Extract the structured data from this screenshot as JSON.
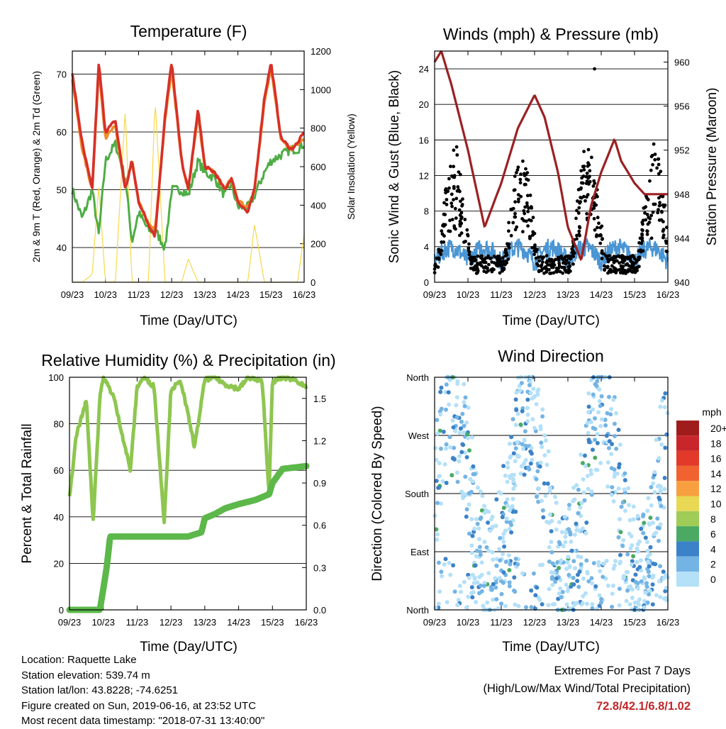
{
  "colors": {
    "temp_2m": "#d63128",
    "temp_9m": "#f08c2a",
    "dewpoint": "#4ead45",
    "solar": "#f7d84b",
    "gust": "#000000",
    "wind": "#4a95d3",
    "pressure": "#9a2124",
    "rh": "#8ec650",
    "precip": "#5cb84a"
  },
  "time_ticks": [
    "09/23",
    "10/23",
    "11/23",
    "12/23",
    "13/23",
    "14/23",
    "15/23",
    "16/23"
  ],
  "info": [
    "Location: Raquette Lake",
    "Station elevation: 539.74 m",
    "Station lat/lon: 43.8228; -74.6251",
    "Figure created on Sun, 2019-06-16, at 23:52 UTC",
    "Most recent data timestamp: \"2018-07-31 13:40:00\""
  ],
  "extremes": {
    "title": "Extremes For Past 7 Days",
    "subtitle": "(High/Low/Max Wind/Total Precipitation)",
    "values": "72.8/42.1/6.8/1.02"
  },
  "chart_data": [
    {
      "type": "line",
      "title": "Temperature (F)",
      "xlabel": "Time (Day/UTC)",
      "ylabel": "2m & 9m T (Red, Orange) & 2m Td (Green)",
      "y2label": "Solar Insolation (Yellow)",
      "ylim": [
        34,
        74
      ],
      "yticks": [
        40,
        50,
        60,
        70
      ],
      "y2lim": [
        0,
        1200
      ],
      "y2ticks": [
        0,
        200,
        400,
        600,
        800,
        1000,
        1200
      ],
      "grid": true,
      "x": [
        9,
        9.3,
        9.6,
        9.8,
        10,
        10.3,
        10.6,
        10.8,
        11,
        11.3,
        11.5,
        11.8,
        12,
        12.3,
        12.5,
        12.8,
        13,
        13.3,
        13.6,
        13.8,
        14,
        14.3,
        14.5,
        14.8,
        15,
        15.3,
        15.6,
        15.8,
        16
      ],
      "series": [
        {
          "name": "2m T",
          "axis": "y",
          "values": [
            70,
            58,
            50,
            72,
            60,
            62,
            50,
            55,
            48,
            44,
            42,
            63,
            72,
            55,
            50,
            64,
            54,
            53,
            50,
            52,
            48,
            46,
            50,
            66,
            72,
            59,
            57,
            58,
            60
          ]
        },
        {
          "name": "9m T",
          "axis": "y",
          "values": [
            69,
            57,
            50,
            71,
            59,
            61,
            50,
            55,
            48,
            44,
            43,
            62,
            71,
            55,
            50,
            63,
            54,
            53,
            50,
            52,
            48,
            47,
            50,
            65,
            71,
            59,
            57,
            58,
            59
          ]
        },
        {
          "name": "2m Td",
          "axis": "y",
          "values": [
            50,
            45,
            50,
            42,
            55,
            58,
            52,
            41,
            46,
            43,
            43,
            40,
            50,
            50,
            49,
            55,
            53,
            52,
            49,
            51,
            47,
            47,
            49,
            53,
            55,
            56,
            57,
            57,
            58
          ]
        },
        {
          "name": "Solar",
          "axis": "y2",
          "values": [
            0,
            0,
            40,
            500,
            0,
            0,
            900,
            0,
            0,
            0,
            950,
            0,
            0,
            0,
            120,
            0,
            0,
            0,
            0,
            0,
            0,
            0,
            300,
            0,
            0,
            0,
            0,
            0,
            250
          ]
        }
      ]
    },
    {
      "type": "scatter",
      "title": "Winds (mph) & Pressure (mb)",
      "xlabel": "Time (Day/UTC)",
      "ylabel": "Sonic Wind & Gust (Blue, Black)",
      "y2label": "Station Pressure (Maroon)",
      "ylim": [
        0,
        26
      ],
      "yticks": [
        0,
        4,
        8,
        12,
        16,
        20,
        24
      ],
      "y2lim": [
        940,
        961
      ],
      "y2ticks": [
        940,
        944,
        948,
        952,
        956,
        960
      ],
      "grid": true,
      "pressure": {
        "x": [
          9,
          9.2,
          9.5,
          10,
          10.5,
          11,
          11.5,
          12,
          12.3,
          12.7,
          13,
          13.4,
          13.7,
          14,
          14.4,
          14.6,
          15,
          15.3,
          15.7,
          16
        ],
        "values": [
          960,
          961,
          958,
          952,
          945,
          949,
          954,
          957,
          955,
          950,
          945,
          942,
          947,
          950,
          953,
          951,
          949,
          948,
          948,
          948
        ]
      },
      "gust_max": 24,
      "wind_max": 6.8
    },
    {
      "type": "line",
      "title": "Relative Humidity (%) & Precipitation (in)",
      "xlabel": "Time (Day/UTC)",
      "ylabel": "Percent & Total Rainfall",
      "ylim": [
        0,
        100
      ],
      "yticks": [
        0,
        20,
        40,
        60,
        80,
        100
      ],
      "y2lim": [
        0,
        1.65
      ],
      "y2ticks": [
        "0.0",
        "0.3",
        "0.6",
        "0.9",
        "1.2",
        "1.5"
      ],
      "grid": true,
      "rh": {
        "x": [
          9,
          9.2,
          9.5,
          9.7,
          9.9,
          10,
          10.3,
          10.8,
          11,
          11.2,
          11.5,
          11.8,
          12,
          12.3,
          12.7,
          13,
          13.3,
          13.6,
          14,
          14.3,
          14.7,
          14.9,
          15,
          15.3,
          15.7,
          16
        ],
        "values": [
          48,
          75,
          90,
          38,
          92,
          100,
          92,
          60,
          96,
          100,
          96,
          38,
          95,
          98,
          70,
          99,
          100,
          97,
          95,
          100,
          98,
          50,
          98,
          100,
          99,
          95
        ]
      },
      "precip": {
        "x": [
          9,
          9.9,
          10,
          10.1,
          10.2,
          10.5,
          11,
          12,
          12.5,
          12.9,
          13,
          13.3,
          13.6,
          14,
          14.5,
          14.9,
          15,
          15.3,
          16
        ],
        "values": [
          0,
          0,
          0.15,
          0.3,
          0.52,
          0.52,
          0.52,
          0.52,
          0.52,
          0.55,
          0.65,
          0.68,
          0.72,
          0.75,
          0.78,
          0.82,
          0.9,
          1.0,
          1.02
        ]
      }
    },
    {
      "type": "scatter",
      "title": "Wind Direction",
      "xlabel": "Time (Day/UTC)",
      "ylabel": "Direction (Colored By Speed)",
      "yticks": [
        "North",
        "East",
        "South",
        "West",
        "North"
      ],
      "legend_title": "mph",
      "legend_labels": [
        "20+",
        "18",
        "16",
        "14",
        "12",
        "10",
        "8",
        "6",
        "4",
        "2",
        "0"
      ],
      "legend_colors": [
        "#a01c1c",
        "#c8262a",
        "#e2392a",
        "#f06330",
        "#f8a040",
        "#e8d854",
        "#a0cc58",
        "#4aaa64",
        "#3c82c8",
        "#74b4e4",
        "#b4e0f8"
      ],
      "legend_placement": "right"
    }
  ]
}
